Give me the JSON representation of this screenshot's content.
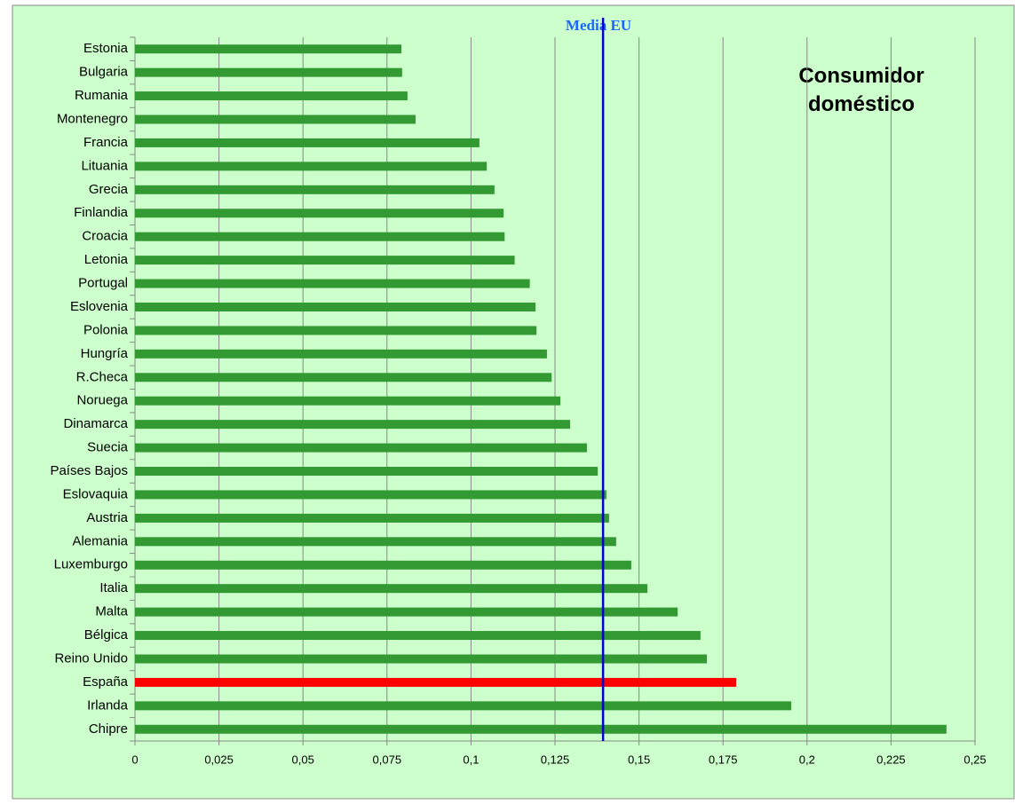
{
  "chart_data": {
    "type": "bar",
    "orientation": "horizontal",
    "annotation": "Consumidor doméstico",
    "categories": [
      "Estonia",
      "Bulgaria",
      "Rumania",
      "Montenegro",
      "Francia",
      "Lituania",
      "Grecia",
      "Finlandia",
      "Croacia",
      "Letonia",
      "Portugal",
      "Eslovenia",
      "Polonia",
      "Hungría",
      "R.Checa",
      "Noruega",
      "Dinamarca",
      "Suecia",
      "Países Bajos",
      "Eslovaquia",
      "Austria",
      "Alemania",
      "Luxemburgo",
      "Italia",
      "Malta",
      "Bélgica",
      "Reino Unido",
      "España",
      "Irlanda",
      "Chipre"
    ],
    "values": [
      0.0793,
      0.0795,
      0.0811,
      0.0835,
      0.1025,
      0.1047,
      0.107,
      0.1097,
      0.11,
      0.113,
      0.1175,
      0.1192,
      0.1195,
      0.1226,
      0.124,
      0.1266,
      0.1295,
      0.1345,
      0.1377,
      0.1403,
      0.1411,
      0.1432,
      0.1477,
      0.1525,
      0.1615,
      0.1683,
      0.1702,
      0.1789,
      0.1953,
      0.2415
    ],
    "colors": [
      "#339933",
      "#339933",
      "#339933",
      "#339933",
      "#339933",
      "#339933",
      "#339933",
      "#339933",
      "#339933",
      "#339933",
      "#339933",
      "#339933",
      "#339933",
      "#339933",
      "#339933",
      "#339933",
      "#339933",
      "#339933",
      "#339933",
      "#339933",
      "#339933",
      "#339933",
      "#339933",
      "#339933",
      "#339933",
      "#339933",
      "#339933",
      "#ff0000",
      "#339933",
      "#339933"
    ],
    "reference_line": {
      "label": "Media EU",
      "value": 0.1393,
      "color": "#0000cc"
    },
    "xlim": [
      0,
      0.25
    ],
    "xticks": [
      0,
      {
        "value": 0.025,
        "label": "0,025"
      },
      {
        "value": 0.05,
        "label": "0,05"
      },
      {
        "value": 0.075,
        "label": "0,075"
      },
      {
        "value": 0.1,
        "label": "0,1"
      },
      {
        "value": 0.125,
        "label": "0,125"
      },
      {
        "value": 0.15,
        "label": "0,15"
      },
      {
        "value": 0.175,
        "label": "0,175"
      },
      {
        "value": 0.2,
        "label": "0,2"
      },
      {
        "value": 0.225,
        "label": "0,225"
      },
      {
        "value": 0.25,
        "label": "0,25"
      }
    ],
    "grid": true
  }
}
